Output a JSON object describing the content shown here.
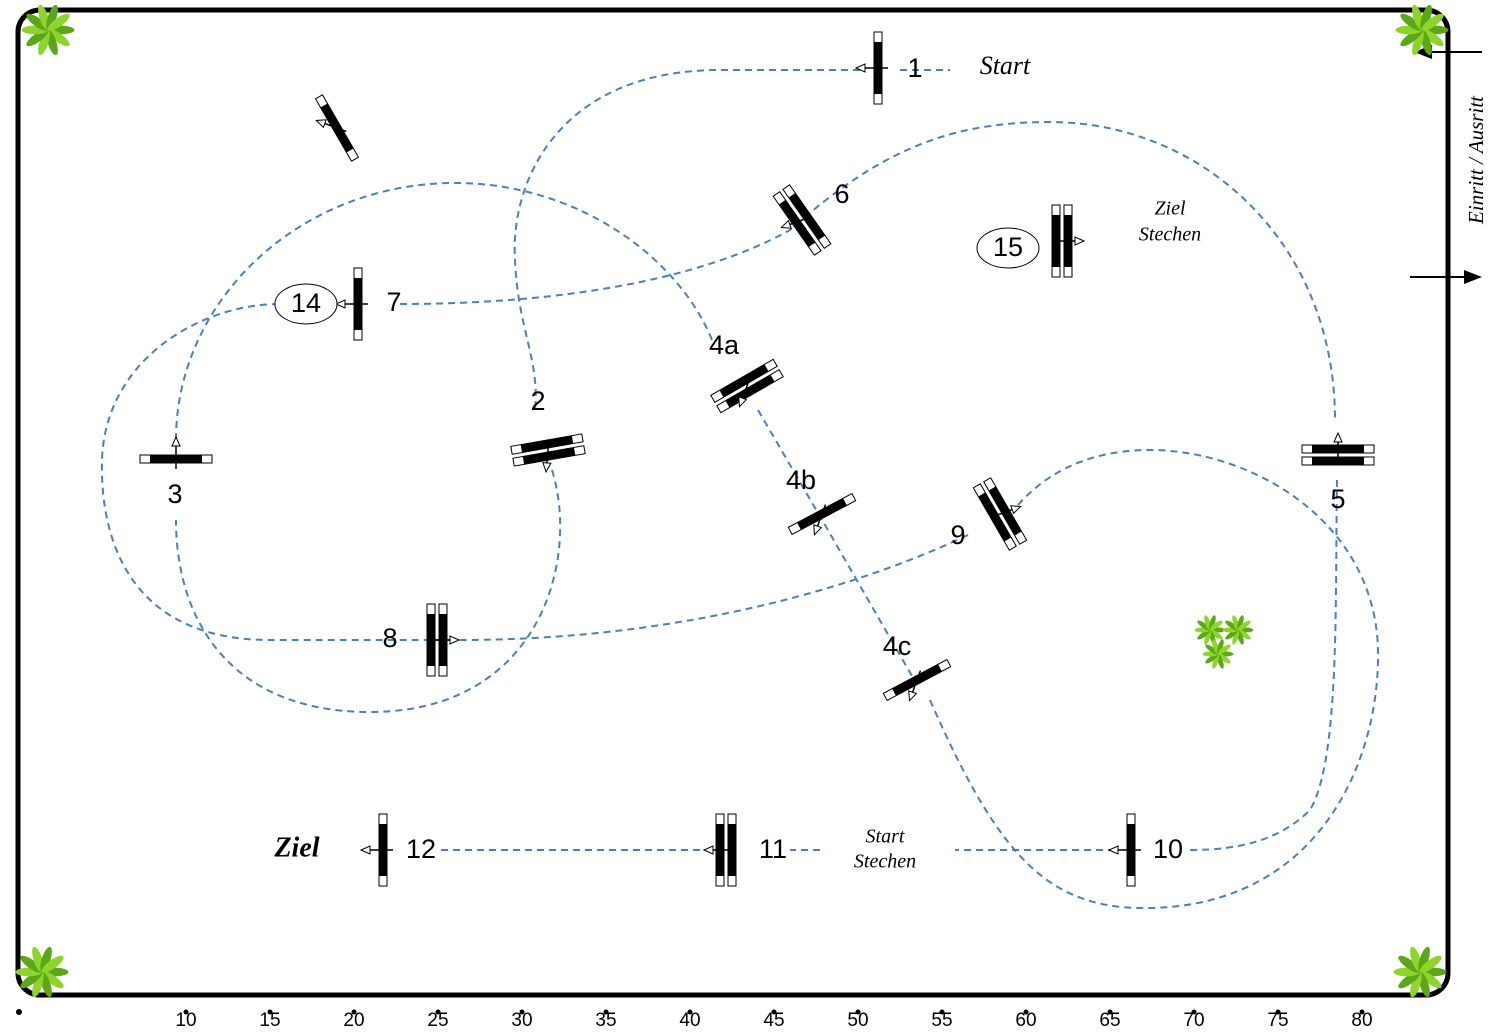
{
  "obstacles": {
    "o1": "1",
    "o2": "2",
    "o3": "3",
    "o4a": "4a",
    "o4b": "4b",
    "o4c": "4c",
    "o5": "5",
    "o6": "6",
    "o7": "7",
    "o8": "8",
    "o9": "9",
    "o10": "10",
    "o11": "11",
    "o12": "12",
    "o14": "14",
    "o15": "15"
  },
  "annotations": {
    "start": "Start",
    "ziel": "Ziel",
    "ziel_stechen": [
      "Ziel",
      "Stechen"
    ],
    "start_stechen": [
      "Start",
      "Stechen"
    ],
    "entrance": "Einritt / Ausritt"
  },
  "scale": [
    10,
    15,
    20,
    25,
    30,
    35,
    40,
    45,
    50,
    55,
    60,
    65,
    70,
    75,
    80
  ]
}
